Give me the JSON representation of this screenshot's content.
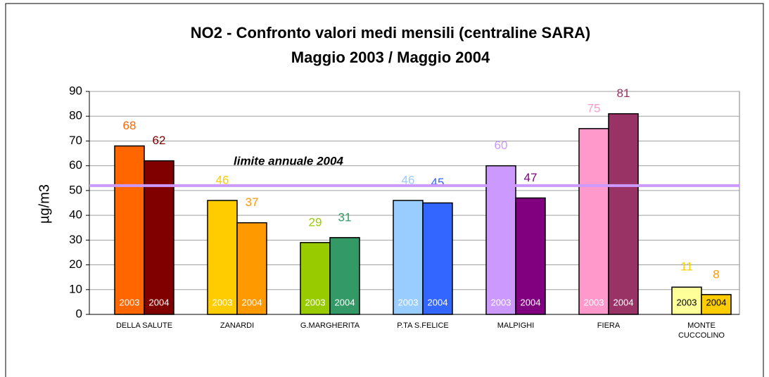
{
  "chart_data": {
    "type": "bar",
    "title": "NO2 - Confronto valori medi mensili (centraline SARA)",
    "subtitle": "Maggio 2003 / Maggio 2004",
    "ylabel": "µg/m3",
    "categories": [
      "DELLA SALUTE",
      "ZANARDI",
      "G.MARGHERITA",
      "P.TA S.FELICE",
      "MALPIGHI",
      "FIERA",
      "MONTE CUCCOLINO"
    ],
    "series": [
      {
        "name": "2003",
        "values": [
          68,
          46,
          29,
          46,
          60,
          75,
          11
        ],
        "colors": [
          "#ff6600",
          "#ffcc00",
          "#99cc00",
          "#99ccff",
          "#cc99ff",
          "#ff99cc",
          "#ffff99"
        ],
        "value_label_colors": [
          "#ff6600",
          "#ffcc00",
          "#99cc00",
          "#99ccff",
          "#cc99ff",
          "#ff99cc",
          "#ffcc00"
        ],
        "inner_label_colors": [
          "#ffffff",
          "#ffffff",
          "#ffffff",
          "#ffffff",
          "#ffffff",
          "#ffffff",
          "#000000"
        ]
      },
      {
        "name": "2004",
        "values": [
          62,
          37,
          31,
          45,
          47,
          81,
          8
        ],
        "colors": [
          "#800000",
          "#ff9900",
          "#339966",
          "#3366ff",
          "#800080",
          "#993366",
          "#ffcc00"
        ],
        "value_label_colors": [
          "#800000",
          "#ff9900",
          "#339966",
          "#3366ff",
          "#800080",
          "#993366",
          "#ff9900"
        ],
        "inner_label_colors": [
          "#ffffff",
          "#ffffff",
          "#ffffff",
          "#ffffff",
          "#ffffff",
          "#ffffff",
          "#000000"
        ]
      }
    ],
    "limit": {
      "value": 52,
      "label": "limite annuale 2004",
      "color": "#cc99ff"
    },
    "ylim": [
      0,
      90
    ],
    "yticks": [
      0,
      10,
      20,
      30,
      40,
      50,
      60,
      70,
      80,
      90
    ],
    "grid": true
  }
}
